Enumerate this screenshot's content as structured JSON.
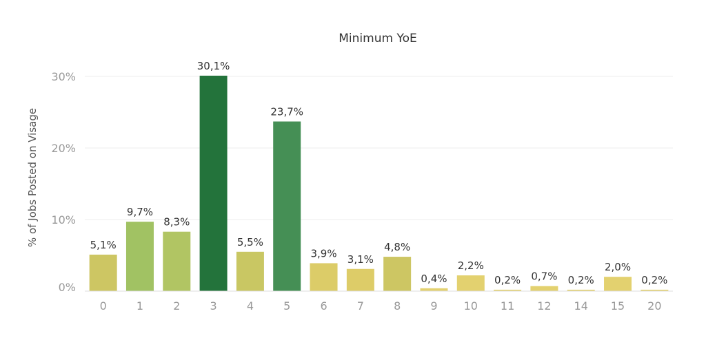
{
  "chart_data": {
    "type": "bar",
    "title": "Minimum YoE",
    "xlabel": "",
    "ylabel": "% of Jobs Posted on Visage",
    "ylim": [
      0,
      33
    ],
    "yticks": [
      "0%",
      "10%",
      "20%",
      "30%"
    ],
    "ytick_values": [
      0,
      10,
      20,
      30
    ],
    "grid": true,
    "categories": [
      "0",
      "1",
      "2",
      "3",
      "4",
      "5",
      "6",
      "7",
      "8",
      "9",
      "10",
      "11",
      "12",
      "14",
      "15",
      "20"
    ],
    "values": [
      5.1,
      9.7,
      8.3,
      30.1,
      5.5,
      23.7,
      3.9,
      3.1,
      4.8,
      0.4,
      2.2,
      0.2,
      0.7,
      0.2,
      2.0,
      0.2
    ],
    "data_labels": [
      "5,1%",
      "9,7%",
      "8,3%",
      "30,1%",
      "5,5%",
      "23,7%",
      "3,9%",
      "3,1%",
      "4,8%",
      "0,4%",
      "2,2%",
      "0,2%",
      "0,7%",
      "0,2%",
      "2,0%",
      "0,2%"
    ],
    "colors": [
      "#cdc663",
      "#a1c263",
      "#b1c563",
      "#23733b",
      "#c9c763",
      "#458f55",
      "#dccc68",
      "#ddcc68",
      "#cdc663",
      "#e3d16f",
      "#e3d16f",
      "#e3d16f",
      "#e3d16f",
      "#e3d16f",
      "#e3d16f",
      "#e3d16f"
    ]
  }
}
